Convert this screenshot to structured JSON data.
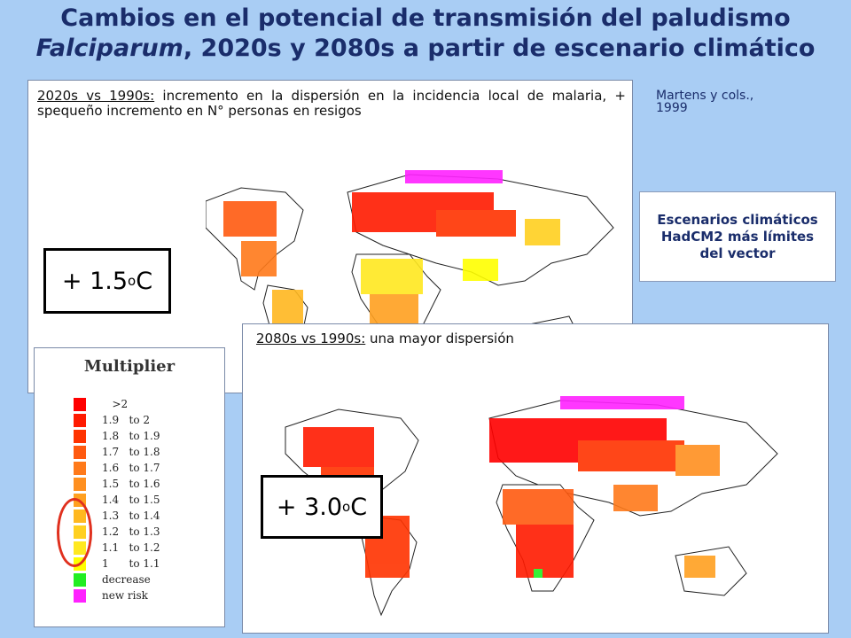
{
  "title": {
    "line1": "Cambios en el potencial de transmisión del paludismo",
    "line2_italic": "Falciparum",
    "line2_rest": ", 2020s y 2080s a partir de escenario climático"
  },
  "panel_2020": {
    "caption_label": "2020s vs 1990s:",
    "caption_text": " incremento en la dispersión en la incidencia local de malaria, + spequeño incremento en N° personas en resigos",
    "temp_prefix": "+ 1.5",
    "temp_deg": "o",
    "temp_unit": "C"
  },
  "panel_2080": {
    "caption_label": "2080s vs 1990s:",
    "caption_text": " una mayor dispersión",
    "temp_prefix": "+ 3.0",
    "temp_deg": "o",
    "temp_unit": "C"
  },
  "source": {
    "line1": "Martens y cols.,",
    "line2": "1999"
  },
  "scenario_box": "Escenarios climáticos HadCM2 más límites del vector",
  "legend": {
    "title": "Multiplier",
    "items": [
      {
        "label": "   >2",
        "color": "#ff0000"
      },
      {
        "label": "1.9   to 2",
        "color": "#ff1a00"
      },
      {
        "label": "1.8   to 1.9",
        "color": "#ff3300"
      },
      {
        "label": "1.7   to 1.8",
        "color": "#ff5a10"
      },
      {
        "label": "1.6   to 1.7",
        "color": "#ff7a1a"
      },
      {
        "label": "1.5   to 1.6",
        "color": "#ff9020"
      },
      {
        "label": "1.4   to 1.5",
        "color": "#ffa020"
      },
      {
        "label": "1.3   to 1.4",
        "color": "#ffb820"
      },
      {
        "label": "1.2   to 1.3",
        "color": "#ffd020"
      },
      {
        "label": "1.1   to 1.2",
        "color": "#ffe820"
      },
      {
        "label": "1      to 1.1",
        "color": "#ffff00"
      },
      {
        "label": "decrease",
        "color": "#22ee22"
      },
      {
        "label": "new risk",
        "color": "#ff22ff"
      }
    ]
  }
}
